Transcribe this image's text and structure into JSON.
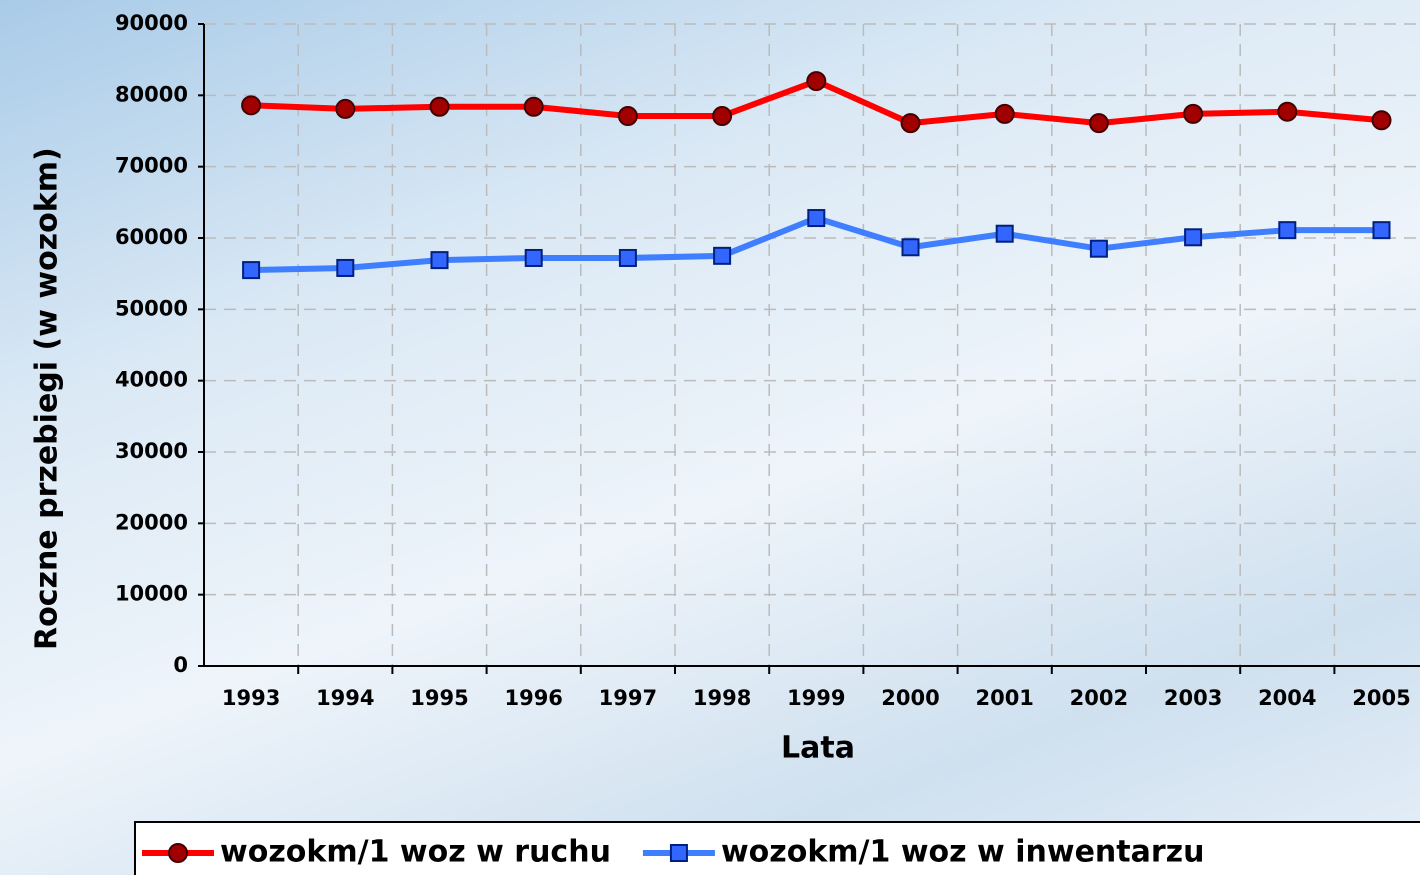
{
  "chart_data": {
    "type": "line",
    "categories": [
      "1993",
      "1994",
      "1995",
      "1996",
      "1997",
      "1998",
      "1999",
      "2000",
      "2001",
      "2002",
      "2003",
      "2004",
      "2005"
    ],
    "series": [
      {
        "name": "wozokm/1 woz w ruchu",
        "color": "#ff0000",
        "marker": "circle",
        "marker_color": "#a00000",
        "values": [
          78600,
          78100,
          78400,
          78400,
          77100,
          77100,
          82000,
          76100,
          77400,
          76100,
          77400,
          77700,
          76500
        ]
      },
      {
        "name": "wozokm/1 woz w inwentarzu",
        "color": "#3f7fff",
        "marker": "square",
        "marker_color": "#3366ff",
        "values": [
          55500,
          55800,
          56900,
          57200,
          57200,
          57500,
          62800,
          58700,
          60600,
          58500,
          60100,
          61100,
          61100
        ]
      }
    ],
    "x_label": "Lata",
    "y_label": "Roczne przebiegi (w wozokm)",
    "ylim": [
      0,
      90000
    ],
    "yticks": [
      0,
      10000,
      20000,
      30000,
      40000,
      50000,
      60000,
      70000,
      80000,
      90000
    ],
    "grid": true,
    "legend": "bottom"
  }
}
